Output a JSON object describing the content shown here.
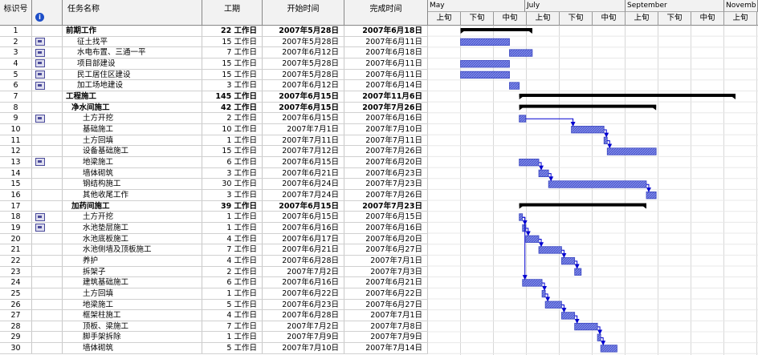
{
  "headers": {
    "id": "标识号",
    "indicator_icon": "info-icon",
    "name": "任务名称",
    "duration": "工期",
    "start": "开始时间",
    "finish": "完成时间"
  },
  "timescale": {
    "months": [
      "May",
      "July",
      "September",
      "Novemb"
    ],
    "periods": [
      "上旬",
      "下旬",
      "中旬",
      "上旬",
      "下旬",
      "中旬",
      "上旬",
      "下旬",
      "中旬",
      "上旬"
    ]
  },
  "tasks": [
    {
      "id": "1",
      "name": "前期工作",
      "duration": "22 工作日",
      "start": "2007年5月28日",
      "finish": "2007年6月18日",
      "level": 0,
      "summary": true,
      "note": false,
      "bar": {
        "s": "2007-05-28",
        "f": "2007-06-18"
      }
    },
    {
      "id": "2",
      "name": "征土找平",
      "duration": "15 工作日",
      "start": "2007年5月28日",
      "finish": "2007年6月11日",
      "level": 2,
      "summary": false,
      "note": true,
      "bar": {
        "s": "2007-05-28",
        "f": "2007-06-11"
      }
    },
    {
      "id": "3",
      "name": "水电布置、三通一平",
      "duration": "7 工作日",
      "start": "2007年6月12日",
      "finish": "2007年6月18日",
      "level": 2,
      "summary": false,
      "note": true,
      "bar": {
        "s": "2007-06-12",
        "f": "2007-06-18"
      }
    },
    {
      "id": "4",
      "name": "项目部建设",
      "duration": "15 工作日",
      "start": "2007年5月28日",
      "finish": "2007年6月11日",
      "level": 2,
      "summary": false,
      "note": true,
      "bar": {
        "s": "2007-05-28",
        "f": "2007-06-11"
      }
    },
    {
      "id": "5",
      "name": "民工居住区建设",
      "duration": "15 工作日",
      "start": "2007年5月28日",
      "finish": "2007年6月11日",
      "level": 2,
      "summary": false,
      "note": true,
      "bar": {
        "s": "2007-05-28",
        "f": "2007-06-11"
      }
    },
    {
      "id": "6",
      "name": "加工场地建设",
      "duration": "3 工作日",
      "start": "2007年6月12日",
      "finish": "2007年6月14日",
      "level": 2,
      "summary": false,
      "note": true,
      "bar": {
        "s": "2007-06-12",
        "f": "2007-06-14"
      }
    },
    {
      "id": "7",
      "name": "工程施工",
      "duration": "145 工作日",
      "start": "2007年6月15日",
      "finish": "2007年11月6日",
      "level": 0,
      "summary": true,
      "note": false,
      "bar": {
        "s": "2007-06-15",
        "f": "2007-11-06"
      }
    },
    {
      "id": "8",
      "name": "净水间施工",
      "duration": "42 工作日",
      "start": "2007年6月15日",
      "finish": "2007年7月26日",
      "level": 1,
      "summary": true,
      "note": false,
      "bar": {
        "s": "2007-06-15",
        "f": "2007-07-26"
      }
    },
    {
      "id": "9",
      "name": "土方开挖",
      "duration": "2 工作日",
      "start": "2007年6月15日",
      "finish": "2007年6月16日",
      "level": 3,
      "summary": false,
      "note": true,
      "bar": {
        "s": "2007-06-15",
        "f": "2007-06-16"
      }
    },
    {
      "id": "10",
      "name": "基础施工",
      "duration": "10 工作日",
      "start": "2007年7月1日",
      "finish": "2007年7月10日",
      "level": 3,
      "summary": false,
      "note": false,
      "bar": {
        "s": "2007-07-01",
        "f": "2007-07-10"
      }
    },
    {
      "id": "11",
      "name": "土方回填",
      "duration": "1 工作日",
      "start": "2007年7月11日",
      "finish": "2007年7月11日",
      "level": 3,
      "summary": false,
      "note": false,
      "bar": {
        "s": "2007-07-11",
        "f": "2007-07-11"
      }
    },
    {
      "id": "12",
      "name": "设备基础施工",
      "duration": "15 工作日",
      "start": "2007年7月12日",
      "finish": "2007年7月26日",
      "level": 3,
      "summary": false,
      "note": false,
      "bar": {
        "s": "2007-07-12",
        "f": "2007-07-26"
      }
    },
    {
      "id": "13",
      "name": "地梁施工",
      "duration": "6 工作日",
      "start": "2007年6月15日",
      "finish": "2007年6月20日",
      "level": 3,
      "summary": false,
      "note": true,
      "bar": {
        "s": "2007-06-15",
        "f": "2007-06-20"
      }
    },
    {
      "id": "14",
      "name": "墙体砌筑",
      "duration": "3 工作日",
      "start": "2007年6月21日",
      "finish": "2007年6月23日",
      "level": 3,
      "summary": false,
      "note": false,
      "bar": {
        "s": "2007-06-21",
        "f": "2007-06-23"
      }
    },
    {
      "id": "15",
      "name": "钢结构施工",
      "duration": "30 工作日",
      "start": "2007年6月24日",
      "finish": "2007年7月23日",
      "level": 3,
      "summary": false,
      "note": false,
      "bar": {
        "s": "2007-06-24",
        "f": "2007-07-23"
      }
    },
    {
      "id": "16",
      "name": "其他收尾工作",
      "duration": "3 工作日",
      "start": "2007年7月24日",
      "finish": "2007年7月26日",
      "level": 3,
      "summary": false,
      "note": false,
      "bar": {
        "s": "2007-07-24",
        "f": "2007-07-26"
      }
    },
    {
      "id": "17",
      "name": "加药间施工",
      "duration": "39 工作日",
      "start": "2007年6月15日",
      "finish": "2007年7月23日",
      "level": 1,
      "summary": true,
      "note": false,
      "bar": {
        "s": "2007-06-15",
        "f": "2007-07-23"
      }
    },
    {
      "id": "18",
      "name": "土方开挖",
      "duration": "1 工作日",
      "start": "2007年6月15日",
      "finish": "2007年6月15日",
      "level": 3,
      "summary": false,
      "note": true,
      "bar": {
        "s": "2007-06-15",
        "f": "2007-06-15"
      }
    },
    {
      "id": "19",
      "name": "水池垫层施工",
      "duration": "1 工作日",
      "start": "2007年6月16日",
      "finish": "2007年6月16日",
      "level": 3,
      "summary": false,
      "note": true,
      "bar": {
        "s": "2007-06-16",
        "f": "2007-06-16"
      }
    },
    {
      "id": "20",
      "name": "水池底板施工",
      "duration": "4 工作日",
      "start": "2007年6月17日",
      "finish": "2007年6月20日",
      "level": 3,
      "summary": false,
      "note": false,
      "bar": {
        "s": "2007-06-17",
        "f": "2007-06-20"
      }
    },
    {
      "id": "21",
      "name": "水池侧墙及顶板施工",
      "duration": "7 工作日",
      "start": "2007年6月21日",
      "finish": "2007年6月27日",
      "level": 3,
      "summary": false,
      "note": false,
      "bar": {
        "s": "2007-06-21",
        "f": "2007-06-27"
      }
    },
    {
      "id": "22",
      "name": "养护",
      "duration": "4 工作日",
      "start": "2007年6月28日",
      "finish": "2007年7月1日",
      "level": 3,
      "summary": false,
      "note": false,
      "bar": {
        "s": "2007-06-28",
        "f": "2007-07-01"
      }
    },
    {
      "id": "23",
      "name": "拆架子",
      "duration": "2 工作日",
      "start": "2007年7月2日",
      "finish": "2007年7月3日",
      "level": 3,
      "summary": false,
      "note": false,
      "bar": {
        "s": "2007-07-02",
        "f": "2007-07-03"
      }
    },
    {
      "id": "24",
      "name": "建筑基础施工",
      "duration": "6 工作日",
      "start": "2007年6月16日",
      "finish": "2007年6月21日",
      "level": 3,
      "summary": false,
      "note": false,
      "bar": {
        "s": "2007-06-16",
        "f": "2007-06-21"
      }
    },
    {
      "id": "25",
      "name": "土方回填",
      "duration": "1 工作日",
      "start": "2007年6月22日",
      "finish": "2007年6月22日",
      "level": 3,
      "summary": false,
      "note": false,
      "bar": {
        "s": "2007-06-22",
        "f": "2007-06-22"
      }
    },
    {
      "id": "26",
      "name": "地梁施工",
      "duration": "5 工作日",
      "start": "2007年6月23日",
      "finish": "2007年6月27日",
      "level": 3,
      "summary": false,
      "note": false,
      "bar": {
        "s": "2007-06-23",
        "f": "2007-06-27"
      }
    },
    {
      "id": "27",
      "name": "框架柱施工",
      "duration": "4 工作日",
      "start": "2007年6月28日",
      "finish": "2007年7月1日",
      "level": 3,
      "summary": false,
      "note": false,
      "bar": {
        "s": "2007-06-28",
        "f": "2007-07-01"
      }
    },
    {
      "id": "28",
      "name": "顶板、梁施工",
      "duration": "7 工作日",
      "start": "2007年7月2日",
      "finish": "2007年7月8日",
      "level": 3,
      "summary": false,
      "note": false,
      "bar": {
        "s": "2007-07-02",
        "f": "2007-07-08"
      }
    },
    {
      "id": "29",
      "name": "脚手架拆除",
      "duration": "1 工作日",
      "start": "2007年7月9日",
      "finish": "2007年7月9日",
      "level": 3,
      "summary": false,
      "note": false,
      "bar": {
        "s": "2007-07-09",
        "f": "2007-07-09"
      }
    },
    {
      "id": "30",
      "name": "墙体砌筑",
      "duration": "5 工作日",
      "start": "2007年7月10日",
      "finish": "2007年7月14日",
      "level": 3,
      "summary": false,
      "note": false,
      "bar": {
        "s": "2007-07-10",
        "f": "2007-07-14"
      }
    }
  ],
  "colors": {
    "taskBar": "#7d88e8",
    "taskBarHatch": "#3a46c0",
    "summaryBar": "#000000",
    "link": "#0000d0",
    "grid": "#c8c8c8"
  }
}
